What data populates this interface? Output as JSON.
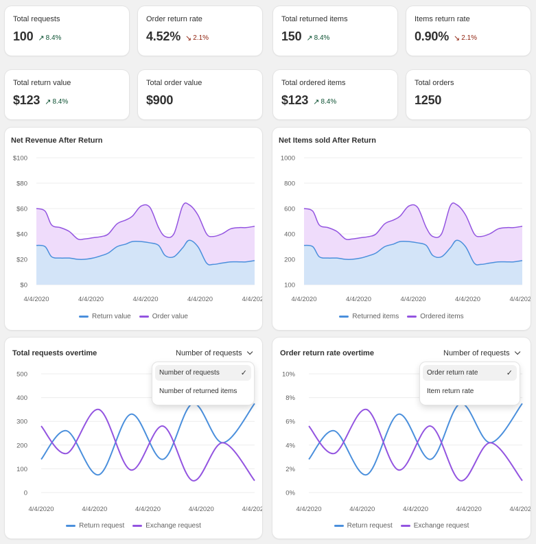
{
  "stats": [
    {
      "label": "Total requests",
      "value": "100",
      "delta": "8.4%",
      "dir": "up"
    },
    {
      "label": "Order return rate",
      "value": "4.52%",
      "delta": "2.1%",
      "dir": "down"
    },
    {
      "label": "Total returned items",
      "value": "150",
      "delta": "8.4%",
      "dir": "up"
    },
    {
      "label": "Items return rate",
      "value": "0.90%",
      "delta": "2.1%",
      "dir": "down"
    },
    {
      "label": "Total return value",
      "value": "$123",
      "delta": "8.4%",
      "dir": "up"
    },
    {
      "label": "Total order value",
      "value": "$900",
      "delta": "",
      "dir": "none"
    },
    {
      "label": "Total ordered items",
      "value": "$123",
      "delta": "8.4%",
      "dir": "up"
    },
    {
      "label": "Total orders",
      "value": "1250",
      "delta": "",
      "dir": "none"
    }
  ],
  "icons": {
    "up": "arrow-up-right-icon",
    "down": "arrow-down-right-icon",
    "check": "checkmark-icon",
    "chevron": "chevron-down-icon"
  },
  "colors": {
    "blue": "#4a8fdc",
    "purple": "#9354e0",
    "blue_fill": "#d3e4f8",
    "purple_fill": "#efdcfb",
    "grid": "#ececec"
  },
  "charts": {
    "net_revenue": {
      "title": "Net Revenue After Return",
      "legend": [
        "Return value",
        "Order value"
      ]
    },
    "net_items": {
      "title": "Net Items sold After Return",
      "legend": [
        "Returned items",
        "Ordered items"
      ]
    },
    "requests": {
      "title": "Total requests overtime",
      "dropdown": "Number of requests",
      "menu": [
        "Number of requests",
        "Number of returned items"
      ],
      "legend": [
        "Return request",
        "Exchange request"
      ]
    },
    "return_rate": {
      "title": "Order return rate overtime",
      "dropdown": "Number of requests",
      "menu": [
        "Order return rate",
        "Item return rate"
      ],
      "legend": [
        "Return request",
        "Exchange request"
      ]
    }
  },
  "chart_data": [
    {
      "type": "area",
      "title": "Net Revenue After Return",
      "yticks": [
        "$0",
        "$20",
        "$40",
        "$60",
        "$80",
        "$100"
      ],
      "ylim": [
        0,
        100
      ],
      "xticks": [
        "4/4/2020",
        "4/4/2020",
        "4/4/2020",
        "4/4/2020",
        "4/4/2020"
      ],
      "x": [
        0,
        0.04,
        0.07,
        0.11,
        0.15,
        0.19,
        0.22,
        0.26,
        0.3,
        0.33,
        0.37,
        0.41,
        0.44,
        0.48,
        0.52,
        0.56,
        0.59,
        0.63,
        0.67,
        0.7,
        0.74,
        0.78,
        0.81,
        0.85,
        0.89,
        0.93,
        0.96,
        1
      ],
      "series": [
        {
          "name": "Return value",
          "values": [
            31,
            30,
            22,
            21,
            21,
            20,
            20,
            21,
            23,
            25,
            30,
            32,
            34,
            34,
            33,
            31,
            23,
            22,
            29,
            35,
            30,
            17,
            16,
            17,
            18,
            18,
            18,
            19
          ]
        },
        {
          "name": "Order value",
          "values": [
            60,
            58,
            47,
            45,
            42,
            36,
            36,
            37,
            38,
            40,
            48,
            51,
            54,
            62,
            61,
            45,
            38,
            40,
            62,
            63,
            55,
            40,
            38,
            40,
            44,
            45,
            45,
            46
          ]
        }
      ]
    },
    {
      "type": "area",
      "title": "Net Items sold After Return",
      "yticks": [
        "100",
        "200",
        "400",
        "600",
        "800",
        "1000"
      ],
      "xticks": [
        "4/4/2020",
        "4/4/2020",
        "4/4/2020",
        "4/4/2020",
        "4/4/2020"
      ],
      "x": [
        0,
        0.04,
        0.07,
        0.11,
        0.15,
        0.19,
        0.22,
        0.26,
        0.3,
        0.33,
        0.37,
        0.41,
        0.44,
        0.48,
        0.52,
        0.56,
        0.59,
        0.63,
        0.67,
        0.7,
        0.74,
        0.78,
        0.81,
        0.85,
        0.89,
        0.93,
        0.96,
        1
      ],
      "series": [
        {
          "name": "Returned items",
          "values": [
            31,
            30,
            22,
            21,
            21,
            20,
            20,
            21,
            23,
            25,
            30,
            32,
            34,
            34,
            33,
            31,
            23,
            22,
            29,
            35,
            30,
            17,
            16,
            17,
            18,
            18,
            18,
            19
          ]
        },
        {
          "name": "Ordered items",
          "values": [
            60,
            58,
            47,
            45,
            42,
            36,
            36,
            37,
            38,
            40,
            48,
            51,
            54,
            62,
            61,
            45,
            38,
            40,
            62,
            63,
            55,
            40,
            38,
            40,
            44,
            45,
            45,
            46
          ]
        }
      ]
    },
    {
      "type": "line",
      "title": "Total requests overtime",
      "yticks": [
        "0",
        "100",
        "200",
        "300",
        "400",
        "500"
      ],
      "ylim": [
        0,
        500
      ],
      "xticks": [
        "4/4/2020",
        "4/4/2020",
        "4/4/2020",
        "4/4/2020",
        "4/4/2020"
      ],
      "x": [
        0,
        0.12,
        0.27,
        0.42,
        0.57,
        0.71,
        0.85,
        1
      ],
      "series": [
        {
          "name": "Return request",
          "values": [
            140,
            260,
            75,
            330,
            140,
            375,
            210,
            375
          ]
        },
        {
          "name": "Exchange request",
          "values": [
            280,
            165,
            350,
            95,
            280,
            50,
            210,
            50
          ]
        }
      ]
    },
    {
      "type": "line",
      "title": "Order return rate overtime",
      "yticks": [
        "0%",
        "2%",
        "4%",
        "6%",
        "8%",
        "10%"
      ],
      "ylim": [
        0,
        10
      ],
      "xticks": [
        "4/4/2020",
        "4/4/2020",
        "4/4/2020",
        "4/4/2020",
        "4/4/2020"
      ],
      "x": [
        0,
        0.12,
        0.27,
        0.42,
        0.57,
        0.71,
        0.85,
        1
      ],
      "series": [
        {
          "name": "Return request",
          "values": [
            2.8,
            5.2,
            1.5,
            6.6,
            2.8,
            7.5,
            4.2,
            7.5
          ]
        },
        {
          "name": "Exchange request",
          "values": [
            5.6,
            3.3,
            7,
            1.9,
            5.6,
            1,
            4.2,
            1
          ]
        }
      ]
    }
  ]
}
